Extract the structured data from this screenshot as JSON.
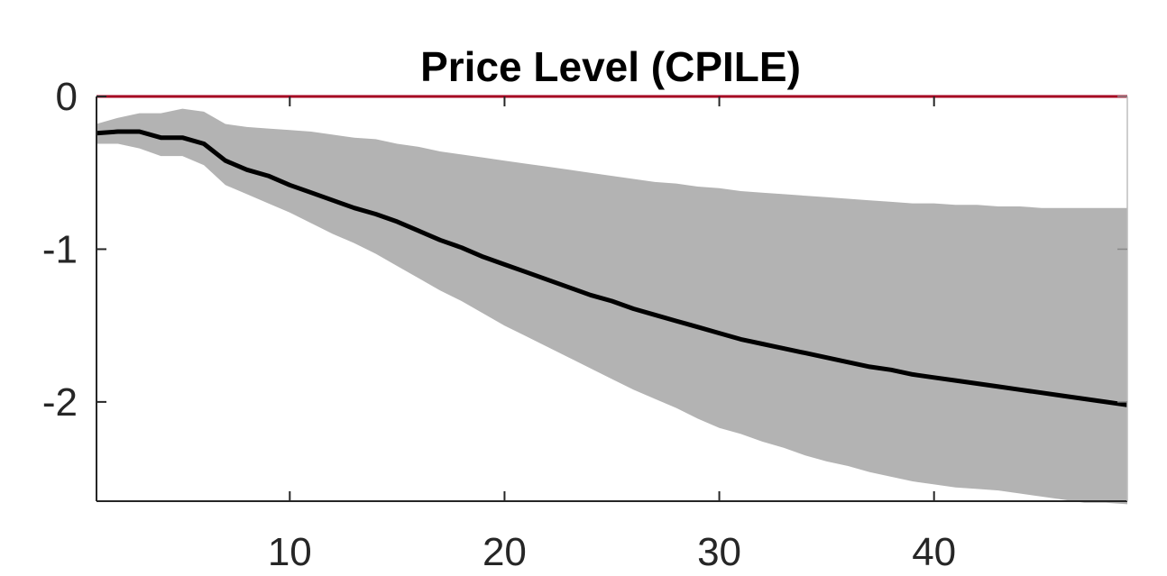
{
  "chart_data": {
    "type": "line",
    "title": "Price Level (CPILE)",
    "xlabel": "",
    "ylabel": "",
    "xlim": [
      1,
      49
    ],
    "ylim": [
      -2.65,
      0
    ],
    "xticks": [
      10,
      20,
      30,
      40
    ],
    "xtick_labels": [
      "10",
      "20",
      "30",
      "40"
    ],
    "yticks": [
      0,
      -1,
      -2
    ],
    "ytick_labels": [
      "0",
      "-1",
      "-2"
    ],
    "grid": false,
    "legend": "none",
    "zero_line": {
      "y": 0,
      "color": "#a50021"
    },
    "colors": {
      "line": "#000000",
      "band": "#b3b3b3",
      "axes": "#262626"
    },
    "series": [
      {
        "role": "response",
        "x": [
          1,
          2,
          3,
          4,
          5,
          6,
          7,
          8,
          9,
          10,
          11,
          12,
          13,
          14,
          15,
          16,
          17,
          18,
          19,
          20,
          21,
          22,
          23,
          24,
          25,
          26,
          27,
          28,
          29,
          30,
          31,
          32,
          33,
          34,
          35,
          36,
          37,
          38,
          39,
          40,
          41,
          42,
          43,
          44,
          45,
          46,
          47,
          48,
          49
        ],
        "values": [
          -0.24,
          -0.23,
          -0.23,
          -0.27,
          -0.27,
          -0.31,
          -0.42,
          -0.48,
          -0.52,
          -0.58,
          -0.63,
          -0.68,
          -0.73,
          -0.77,
          -0.82,
          -0.88,
          -0.94,
          -0.99,
          -1.05,
          -1.1,
          -1.15,
          -1.2,
          -1.25,
          -1.3,
          -1.34,
          -1.39,
          -1.43,
          -1.47,
          -1.51,
          -1.55,
          -1.59,
          -1.62,
          -1.65,
          -1.68,
          -1.71,
          -1.74,
          -1.77,
          -1.79,
          -1.82,
          -1.84,
          -1.86,
          -1.88,
          -1.9,
          -1.92,
          -1.94,
          -1.96,
          -1.98,
          -2.0,
          -2.02
        ]
      },
      {
        "role": "band-upper",
        "x": [
          1,
          2,
          3,
          4,
          5,
          6,
          7,
          8,
          9,
          10,
          11,
          12,
          13,
          14,
          15,
          16,
          17,
          18,
          19,
          20,
          21,
          22,
          23,
          24,
          25,
          26,
          27,
          28,
          29,
          30,
          31,
          32,
          33,
          34,
          35,
          36,
          37,
          38,
          39,
          40,
          41,
          42,
          43,
          44,
          45,
          46,
          47,
          48,
          49
        ],
        "values": [
          -0.18,
          -0.14,
          -0.11,
          -0.11,
          -0.08,
          -0.1,
          -0.18,
          -0.2,
          -0.21,
          -0.22,
          -0.23,
          -0.25,
          -0.27,
          -0.28,
          -0.31,
          -0.33,
          -0.36,
          -0.38,
          -0.4,
          -0.42,
          -0.44,
          -0.46,
          -0.48,
          -0.5,
          -0.52,
          -0.54,
          -0.56,
          -0.57,
          -0.59,
          -0.6,
          -0.62,
          -0.63,
          -0.64,
          -0.65,
          -0.66,
          -0.67,
          -0.68,
          -0.69,
          -0.7,
          -0.7,
          -0.71,
          -0.71,
          -0.72,
          -0.72,
          -0.73,
          -0.73,
          -0.73,
          -0.73,
          -0.73
        ]
      },
      {
        "role": "band-lower",
        "x": [
          1,
          2,
          3,
          4,
          5,
          6,
          7,
          8,
          9,
          10,
          11,
          12,
          13,
          14,
          15,
          16,
          17,
          18,
          19,
          20,
          21,
          22,
          23,
          24,
          25,
          26,
          27,
          28,
          29,
          30,
          31,
          32,
          33,
          34,
          35,
          36,
          37,
          38,
          39,
          40,
          41,
          42,
          43,
          44,
          45,
          46,
          47,
          48,
          49
        ],
        "values": [
          -0.31,
          -0.31,
          -0.34,
          -0.39,
          -0.39,
          -0.45,
          -0.58,
          -0.64,
          -0.7,
          -0.76,
          -0.83,
          -0.9,
          -0.96,
          -1.03,
          -1.11,
          -1.19,
          -1.27,
          -1.34,
          -1.42,
          -1.5,
          -1.57,
          -1.64,
          -1.71,
          -1.78,
          -1.85,
          -1.92,
          -1.98,
          -2.04,
          -2.11,
          -2.17,
          -2.21,
          -2.26,
          -2.3,
          -2.35,
          -2.39,
          -2.42,
          -2.46,
          -2.49,
          -2.52,
          -2.54,
          -2.56,
          -2.57,
          -2.58,
          -2.6,
          -2.62,
          -2.64,
          -2.66,
          -2.66,
          -2.67
        ]
      }
    ]
  }
}
